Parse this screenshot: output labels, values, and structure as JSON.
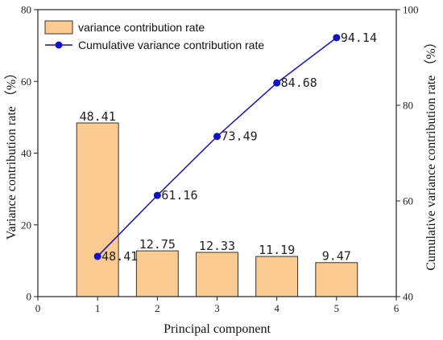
{
  "chart_data": {
    "type": "bar",
    "xlabel": "Principal component",
    "ylabel_left": "Variance contribution rate （%）",
    "ylabel_right": "Cumulative variance contribution rate （%）",
    "xlim": [
      0,
      6
    ],
    "ylim_left": [
      0,
      80
    ],
    "ylim_right": [
      40,
      100
    ],
    "x_ticks": [
      0,
      1,
      2,
      3,
      4,
      5,
      6
    ],
    "y_ticks_left": [
      0,
      20,
      40,
      60,
      80
    ],
    "y_ticks_right": [
      40,
      60,
      80,
      100
    ],
    "legend_position": "top-left",
    "grid": false,
    "x": [
      1,
      2,
      3,
      4,
      5
    ],
    "series": [
      {
        "name": "variance contribution rate",
        "type": "bar",
        "axis": "left",
        "values": [
          48.41,
          12.75,
          12.33,
          11.19,
          9.47
        ],
        "labels": [
          "48.41",
          "12.75",
          "12.33",
          "11.19",
          "9.47"
        ],
        "color": "#FBCB91",
        "edge_color": "#333333"
      },
      {
        "name": "Cumulative variance contribution rate",
        "type": "line",
        "axis": "right",
        "values": [
          48.41,
          61.16,
          73.49,
          84.68,
          94.14
        ],
        "labels": [
          "48.41",
          "61.16",
          "73.49",
          "84.68",
          "94.14"
        ],
        "color": "#1111CC"
      }
    ]
  }
}
